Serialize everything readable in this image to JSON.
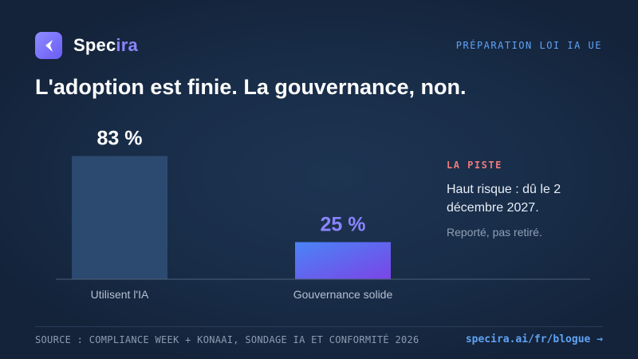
{
  "brand": {
    "name_plain": "Spec",
    "name_accent": "ira"
  },
  "eyebrow": "PRÉPARATION LOI IA UE",
  "headline": "L'adoption est finie. La gouvernance, non.",
  "chart_data": {
    "type": "bar",
    "categories": [
      "Utilisent l'IA",
      "Gouvernance solide"
    ],
    "values": [
      83,
      25
    ],
    "value_labels": [
      "83 %",
      "25 %"
    ],
    "ylim": [
      0,
      100
    ],
    "title": "",
    "xlabel": "",
    "ylabel": "",
    "colors": [
      "#2c4a70",
      "#6a52ee"
    ],
    "label_colors": [
      "#ffffff",
      "#8b84ff"
    ]
  },
  "sidebar": {
    "kicker": "LA PISTE",
    "main": "Haut risque : dû le 2 décembre 2027.",
    "sub": "Reporté, pas retiré."
  },
  "footer": {
    "source": "SOURCE : COMPLIANCE WEEK + KONAAI, SONDAGE IA ET CONFORMITÉ 2026",
    "link": "specira.ai/fr/blogue →"
  }
}
